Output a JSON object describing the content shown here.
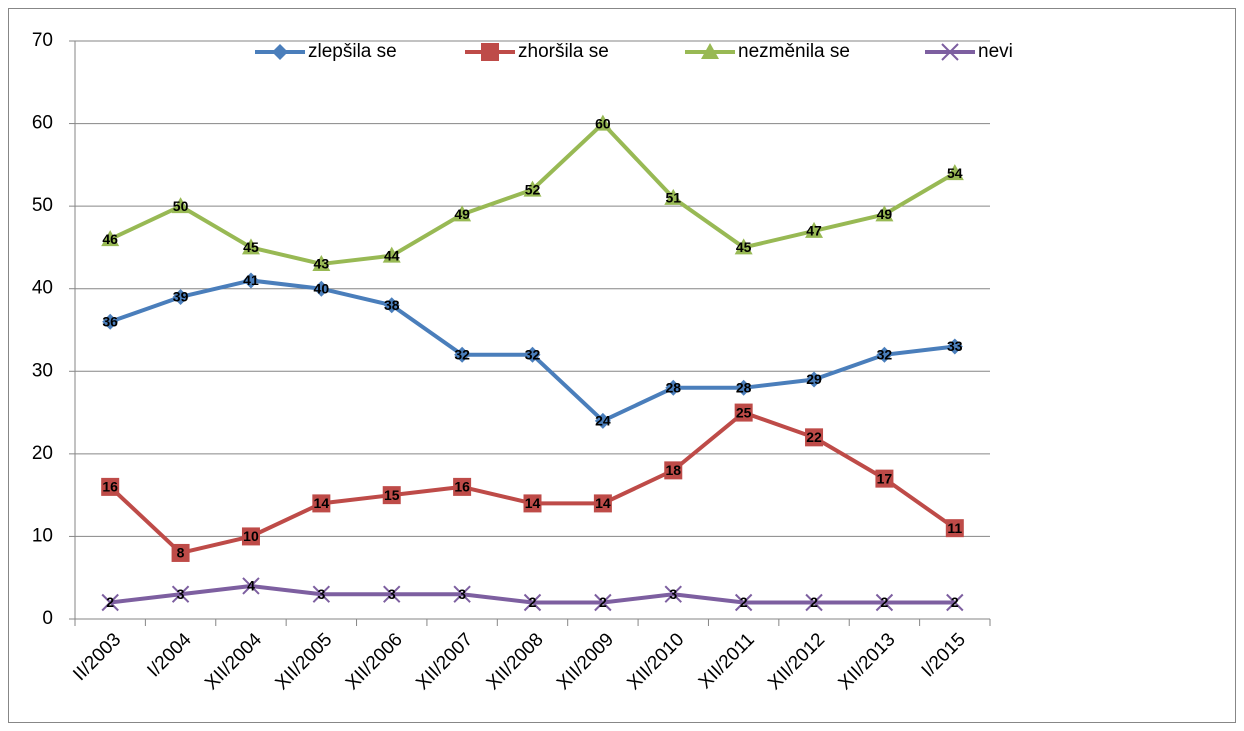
{
  "chart_data": {
    "type": "line",
    "categories": [
      "II/2003",
      "I/2004",
      "XII/2004",
      "XII/2005",
      "XII/2006",
      "XII/2007",
      "XII/2008",
      "XII/2009",
      "XII/2010",
      "XII/2011",
      "XII/2012",
      "XII/2013",
      "I/2015"
    ],
    "series": [
      {
        "name": "zlepšila se",
        "color": "#4a7ebb",
        "marker": "diamond",
        "values": [
          36,
          39,
          41,
          40,
          38,
          32,
          32,
          24,
          28,
          28,
          29,
          32,
          33
        ]
      },
      {
        "name": "zhoršila se",
        "color": "#be4b48",
        "marker": "square",
        "values": [
          16,
          8,
          10,
          14,
          15,
          16,
          14,
          14,
          18,
          25,
          22,
          17,
          11
        ]
      },
      {
        "name": "nezměnila se",
        "color": "#98b954",
        "marker": "triangle",
        "values": [
          46,
          50,
          45,
          43,
          44,
          49,
          52,
          60,
          51,
          45,
          47,
          49,
          54
        ]
      },
      {
        "name": "nevi",
        "color": "#7d5fa0",
        "marker": "x",
        "values": [
          2,
          3,
          4,
          3,
          3,
          3,
          2,
          2,
          3,
          2,
          2,
          2,
          2
        ]
      }
    ],
    "ylim": [
      0,
      70
    ],
    "yticks": [
      0,
      10,
      20,
      30,
      40,
      50,
      60,
      70
    ],
    "grid": true,
    "legend": "top"
  }
}
